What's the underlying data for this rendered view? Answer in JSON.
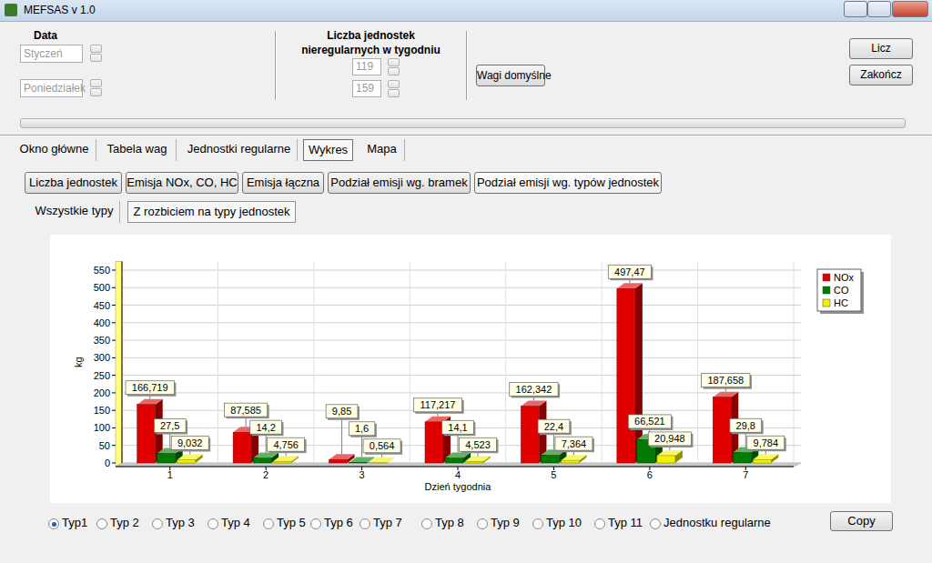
{
  "window": {
    "title": "MEFSAS v 1.0"
  },
  "top_panel": {
    "date_label": "Data",
    "month": "Styczeń",
    "weekday": "Poniedziałek",
    "units_label_line1": "Liczba jednostek",
    "units_label_line2": "nieregularnych w tygodniu",
    "units_values": [
      119,
      159
    ],
    "default_weights_button": "Wagi domyślne",
    "buttons": [
      "Licz",
      "Zakończ"
    ]
  },
  "tabs": {
    "items": [
      "Okno główne",
      "Tabela wag",
      "Jednostki regularne",
      "Wykres",
      "Mapa"
    ],
    "active": 3
  },
  "subtabs": {
    "items": [
      "Liczba jednostek",
      "Emisja NOx, CO, HC",
      "Emisja łączna",
      "Podział emisji wg. bramek",
      "Podział emisji wg. typów jednostek"
    ],
    "active": 4
  },
  "view_tabs": {
    "items": [
      "Wszystkie typy",
      "Z rozbiciem na typy jednostek"
    ],
    "active": 1
  },
  "type_selector": {
    "items": [
      "Typ1",
      "Typ 2",
      "Typ 3",
      "Typ 4",
      "Typ 5",
      "Typ 6",
      "Typ 7",
      "Typ 8",
      "Typ 9",
      "Typ 10",
      "Typ 11",
      "Jednostku regularne"
    ],
    "selected": 0
  },
  "copy_button": "Copy",
  "chart_data": {
    "type": "bar",
    "categories": [
      "1",
      "2",
      "3",
      "4",
      "5",
      "6",
      "7"
    ],
    "x_label": "Dzień tygodnia",
    "y_label": "kg",
    "ylim": [
      0,
      575
    ],
    "yticks": [
      0,
      50,
      100,
      150,
      200,
      250,
      300,
      350,
      400,
      450,
      500,
      550
    ],
    "grid": true,
    "legend": "top-right",
    "data_labels": true,
    "series": [
      {
        "name": "NOx",
        "color": "#e00000",
        "values": [
          166.719,
          87.585,
          9.85,
          117.217,
          162.342,
          497.47,
          187.658
        ],
        "value_labels": [
          "166,719",
          "87,585",
          "9,85",
          "117,217",
          "162,342",
          "497,47",
          "187,658"
        ]
      },
      {
        "name": "CO",
        "color": "#007a00",
        "values": [
          27.5,
          14.2,
          1.6,
          14.1,
          22.4,
          66.521,
          29.8
        ],
        "value_labels": [
          "27,5",
          "14,2",
          "1,6",
          "14,1",
          "22,4",
          "66,521",
          "29,8"
        ]
      },
      {
        "name": "HC",
        "color": "#f2f200",
        "values": [
          9.032,
          4.756,
          0.564,
          4.523,
          7.364,
          20.948,
          9.784
        ],
        "value_labels": [
          "9,032",
          "4,756",
          "0,564",
          "4,523",
          "7,364",
          "20,948",
          "9,784"
        ]
      }
    ]
  }
}
